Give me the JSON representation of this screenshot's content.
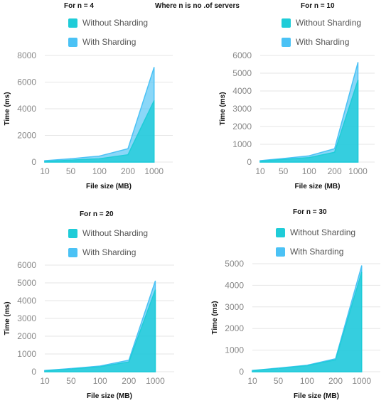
{
  "header": {
    "center_caption": "Where n is no .of servers"
  },
  "colors": {
    "without_sharding": "#1FCCD8",
    "with_sharding": "#4BC2F5",
    "grid": "#e6e6e6"
  },
  "chart_data": [
    {
      "type": "area",
      "title": "For n = 4",
      "categories": [
        "10",
        "50",
        "100",
        "200",
        "1000"
      ],
      "series": [
        {
          "name": "Without Sharding",
          "values": [
            50,
            150,
            250,
            550,
            4600
          ]
        },
        {
          "name": "With Sharding",
          "values": [
            100,
            250,
            450,
            1000,
            7100
          ]
        }
      ],
      "xlabel": "File size (MB)",
      "ylabel": "Time (ms)",
      "ylim": [
        0,
        8000
      ],
      "yticks": [
        0,
        2000,
        4000,
        6000,
        8000
      ],
      "grid": true,
      "legend": "top"
    },
    {
      "type": "area",
      "title": "For n = 10",
      "categories": [
        "10",
        "50",
        "100",
        "200",
        "1000"
      ],
      "series": [
        {
          "name": "Without Sharding",
          "values": [
            50,
            150,
            250,
            550,
            4600
          ]
        },
        {
          "name": "With Sharding",
          "values": [
            80,
            200,
            350,
            750,
            5600
          ]
        }
      ],
      "xlabel": "File size (MB)",
      "ylabel": "Time (ms)",
      "ylim": [
        0,
        6000
      ],
      "yticks": [
        0,
        1000,
        2000,
        3000,
        4000,
        5000,
        6000
      ],
      "grid": true,
      "legend": "top"
    },
    {
      "type": "area",
      "title": "For n = 20",
      "categories": [
        "10",
        "50",
        "100",
        "200",
        "1000"
      ],
      "series": [
        {
          "name": "Without Sharding",
          "values": [
            50,
            150,
            280,
            550,
            4600
          ]
        },
        {
          "name": "With Sharding",
          "values": [
            70,
            180,
            320,
            650,
            5100
          ]
        }
      ],
      "xlabel": "File size (MB)",
      "ylabel": "Time (ms)",
      "ylim": [
        0,
        6000
      ],
      "yticks": [
        0,
        1000,
        2000,
        3000,
        4000,
        5000,
        6000
      ],
      "grid": true,
      "legend": "top"
    },
    {
      "type": "area",
      "title": "For n = 30",
      "categories": [
        "10",
        "50",
        "100",
        "200",
        "1000"
      ],
      "series": [
        {
          "name": "Without Sharding",
          "values": [
            50,
            150,
            280,
            550,
            4600
          ]
        },
        {
          "name": "With Sharding",
          "values": [
            60,
            170,
            300,
            600,
            4900
          ]
        }
      ],
      "xlabel": "File size (MB)",
      "ylabel": "Time (ms)",
      "ylim": [
        0,
        5000
      ],
      "yticks": [
        0,
        1000,
        2000,
        3000,
        4000,
        5000
      ],
      "grid": true,
      "legend": "top"
    }
  ]
}
